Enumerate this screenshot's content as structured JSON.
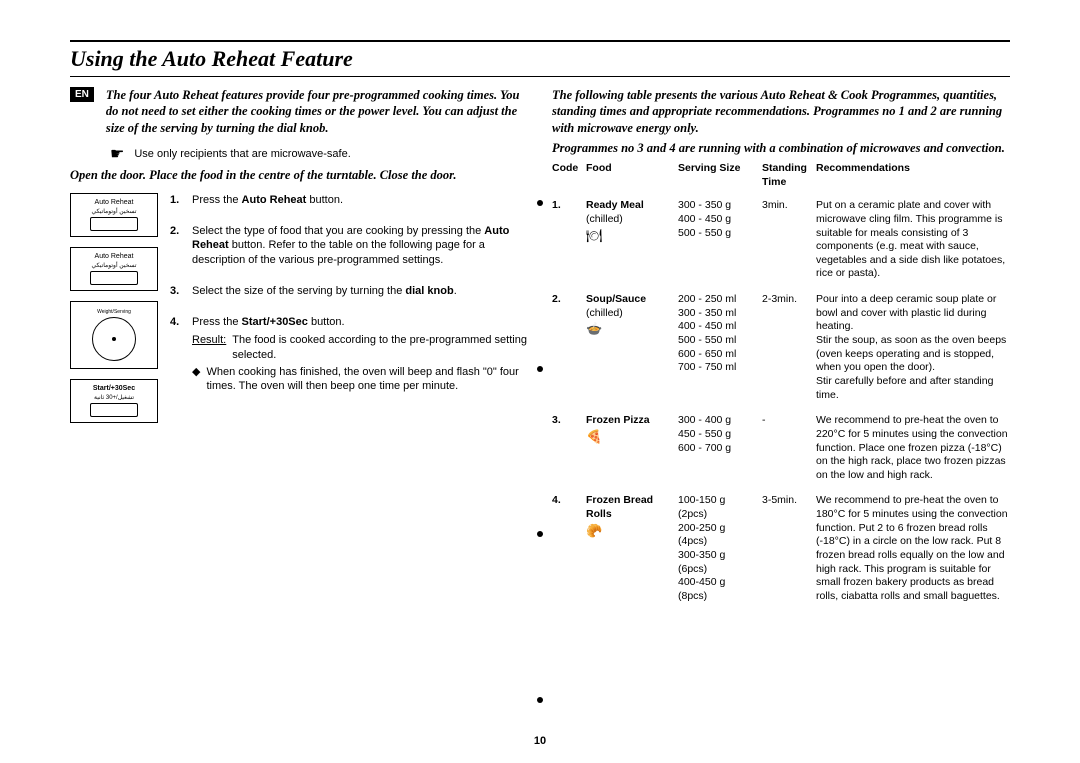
{
  "title": "Using the Auto Reheat Feature",
  "lang_badge": "EN",
  "left": {
    "intro": "The four Auto Reheat features provide four pre-programmed cooking times. You do not need to set either the cooking times or the power level. You can adjust the size of the serving by turning the dial knob.",
    "hand_note": "Use only recipients that are microwave-safe.",
    "open_door": "Open the door. Place the food in the centre of the turntable. Close the door.",
    "illus": {
      "auto_reheat": "Auto Reheat",
      "auto_reheat_sub": "تسخين أوتوماتيكي",
      "dial_label": "Weight/Serving",
      "start_label": "Start/+30Sec",
      "start_sub": "تشغيل/+30 ثانية"
    },
    "steps": [
      {
        "num": "1.",
        "body_prefix": "Press the ",
        "body_bold": "Auto Reheat",
        "body_suffix": " button."
      },
      {
        "num": "2.",
        "body_prefix": "Select the type of food that you are cooking by pressing the ",
        "body_bold": "Auto Reheat",
        "body_suffix": " button. Refer to the table on the following page for a description of the various pre-programmed settings."
      },
      {
        "num": "3.",
        "body_prefix": "Select the size of the serving by turning the ",
        "body_bold": "dial knob",
        "body_suffix": "."
      },
      {
        "num": "4.",
        "body_prefix": "Press the ",
        "body_bold": "Start/+30Sec",
        "body_suffix": " button.",
        "result_label": "Result:",
        "result_text": "The food is cooked according to the pre-programmed setting selected.",
        "bullet": "When cooking has finished, the oven will beep and flash \"0\" four times. The oven will then beep one time per minute."
      }
    ]
  },
  "right": {
    "intro1": "The following table presents the various Auto Reheat & Cook Programmes, quantities, standing times and appropriate recommendations. Programmes no 1 and 2 are running with microwave energy only.",
    "intro2": "Programmes no 3 and 4 are running with a combination of microwaves and convection.",
    "headers": {
      "code": "Code",
      "food": "Food",
      "size": "Serving Size",
      "time": "Standing Time",
      "rec": "Recommendations"
    },
    "rows": [
      {
        "code": "1.",
        "food": "Ready Meal",
        "food_sub": "(chilled)",
        "icon": "🍽",
        "sizes": [
          "300 - 350 g",
          "400 - 450 g",
          "500 - 550 g"
        ],
        "time": "3min.",
        "rec": "Put on a ceramic plate and cover with microwave cling film. This programme is suitable for meals consisting of 3 components (e.g. meat with sauce, vegetables and a side dish like potatoes, rice or pasta)."
      },
      {
        "code": "2.",
        "food": "Soup/Sauce",
        "food_sub": "(chilled)",
        "icon": "🍲",
        "sizes": [
          "200 - 250 ml",
          "300 - 350 ml",
          "400 - 450 ml",
          "500 - 550 ml",
          "600 - 650 ml",
          "700 - 750 ml"
        ],
        "time": "2-3min.",
        "rec": "Pour into a deep ceramic soup plate or bowl and cover with plastic lid during heating.\nStir the soup, as soon as the oven beeps (oven keeps operating and is stopped, when you open the door).\nStir carefully before and after standing time."
      },
      {
        "code": "3.",
        "food": "Frozen Pizza",
        "food_sub": "",
        "icon": "🍕",
        "sizes": [
          "300 - 400 g",
          "450 - 550 g",
          "600 - 700 g"
        ],
        "time": "-",
        "rec": "We recommend to pre-heat the oven to 220°C for 5 minutes using the convection function. Place one frozen pizza (-18°C) on the high rack, place two frozen pizzas on the low and high rack."
      },
      {
        "code": "4.",
        "food": "Frozen Bread Rolls",
        "food_sub": "",
        "icon": "🥐",
        "sizes": [
          "100-150 g (2pcs)",
          "200-250 g (4pcs)",
          "300-350 g (6pcs)",
          "400-450 g (8pcs)"
        ],
        "time": "3-5min.",
        "rec": "We recommend to pre-heat the oven to 180°C for 5 minutes using the convection function. Put 2 to 6 frozen bread rolls (-18°C) in a circle on the low rack. Put 8 frozen bread rolls equally on the low and high rack. This program is suitable for small frozen bakery products as bread rolls, ciabatta rolls and small baguettes."
      }
    ]
  },
  "page_number": "10"
}
